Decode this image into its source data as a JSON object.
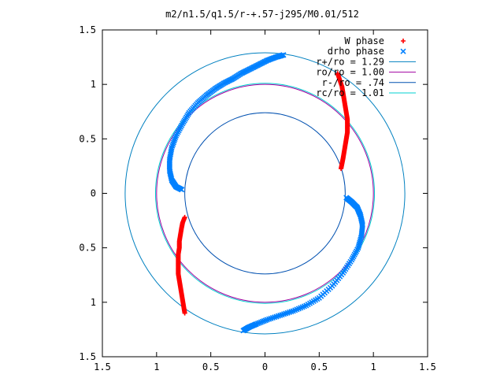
{
  "chart_data": {
    "type": "scatter",
    "title": "m2/n1.5/q1.5/r-+.57-j295/M0.01/512",
    "xlabel": "",
    "ylabel": "",
    "xlim": [
      -1.5,
      1.5
    ],
    "ylim": [
      -1.5,
      1.5
    ],
    "grid": false,
    "legend_position": "top-right",
    "x_ticks": [
      {
        "value": -1.5,
        "label": "1.5"
      },
      {
        "value": -1.0,
        "label": "1"
      },
      {
        "value": -0.5,
        "label": "0.5"
      },
      {
        "value": 0.0,
        "label": "0"
      },
      {
        "value": 0.5,
        "label": "0.5"
      },
      {
        "value": 1.0,
        "label": "1"
      },
      {
        "value": 1.5,
        "label": "1.5"
      }
    ],
    "y_ticks": [
      {
        "value": 1.5,
        "label": "1.5"
      },
      {
        "value": 1.0,
        "label": "1"
      },
      {
        "value": 0.5,
        "label": "0.5"
      },
      {
        "value": 0.0,
        "label": "0"
      },
      {
        "value": -0.5,
        "label": "0.5"
      },
      {
        "value": -1.0,
        "label": "1"
      },
      {
        "value": -1.5,
        "label": "1.5"
      }
    ],
    "series": [
      {
        "name": "W phase",
        "marker": "plus",
        "color": "#ff0000",
        "points": [
          [
            0.67,
            1.1
          ],
          [
            0.69,
            1.04
          ],
          [
            0.71,
            0.98
          ],
          [
            0.72,
            0.92
          ],
          [
            0.73,
            0.86
          ],
          [
            0.74,
            0.8
          ],
          [
            0.75,
            0.74
          ],
          [
            0.76,
            0.68
          ],
          [
            0.76,
            0.62
          ],
          [
            0.76,
            0.56
          ],
          [
            0.75,
            0.5
          ],
          [
            0.74,
            0.44
          ],
          [
            0.73,
            0.38
          ],
          [
            0.72,
            0.32
          ],
          [
            0.71,
            0.27
          ],
          [
            0.7,
            0.22
          ],
          [
            -0.74,
            -1.1
          ],
          [
            -0.75,
            -1.04
          ],
          [
            -0.76,
            -0.98
          ],
          [
            -0.77,
            -0.92
          ],
          [
            -0.78,
            -0.86
          ],
          [
            -0.79,
            -0.8
          ],
          [
            -0.8,
            -0.74
          ],
          [
            -0.8,
            -0.68
          ],
          [
            -0.8,
            -0.62
          ],
          [
            -0.8,
            -0.56
          ],
          [
            -0.79,
            -0.5
          ],
          [
            -0.79,
            -0.44
          ],
          [
            -0.78,
            -0.38
          ],
          [
            -0.77,
            -0.32
          ],
          [
            -0.76,
            -0.27
          ],
          [
            -0.74,
            -0.22
          ]
        ]
      },
      {
        "name": "drho phase",
        "marker": "cross",
        "color": "#0080ff",
        "points": [
          [
            0.17,
            1.27
          ],
          [
            0.1,
            1.25
          ],
          [
            0.02,
            1.22
          ],
          [
            -0.06,
            1.18
          ],
          [
            -0.14,
            1.14
          ],
          [
            -0.22,
            1.1
          ],
          [
            -0.3,
            1.05
          ],
          [
            -0.38,
            1.01
          ],
          [
            -0.46,
            0.96
          ],
          [
            -0.54,
            0.9
          ],
          [
            -0.62,
            0.83
          ],
          [
            -0.7,
            0.74
          ],
          [
            -0.76,
            0.64
          ],
          [
            -0.82,
            0.53
          ],
          [
            -0.86,
            0.42
          ],
          [
            -0.88,
            0.31
          ],
          [
            -0.88,
            0.21
          ],
          [
            -0.86,
            0.12
          ],
          [
            -0.82,
            0.06
          ],
          [
            -0.76,
            0.03
          ],
          [
            0.75,
            -0.04
          ],
          [
            0.8,
            -0.08
          ],
          [
            0.85,
            -0.13
          ],
          [
            0.88,
            -0.2
          ],
          [
            0.9,
            -0.29
          ],
          [
            0.89,
            -0.39
          ],
          [
            0.86,
            -0.5
          ],
          [
            0.8,
            -0.61
          ],
          [
            0.72,
            -0.73
          ],
          [
            0.62,
            -0.85
          ],
          [
            0.5,
            -0.96
          ],
          [
            0.38,
            -1.03
          ],
          [
            0.26,
            -1.08
          ],
          [
            0.14,
            -1.12
          ],
          [
            0.02,
            -1.16
          ],
          [
            -0.08,
            -1.2
          ],
          [
            -0.15,
            -1.23
          ],
          [
            -0.2,
            -1.26
          ]
        ]
      },
      {
        "name": "r+/ro = 1.29",
        "type": "circle",
        "radius": 1.29,
        "color": "#0080c0"
      },
      {
        "name": "ro/ro = 1.00",
        "type": "circle",
        "radius": 1.0,
        "color": "#a000a0"
      },
      {
        "name": "r-/ro = .74",
        "type": "circle",
        "radius": 0.74,
        "color": "#0050b0"
      },
      {
        "name": "rc/ro = 1.01",
        "type": "circle",
        "radius": 1.01,
        "color": "#00d0d0"
      }
    ]
  }
}
